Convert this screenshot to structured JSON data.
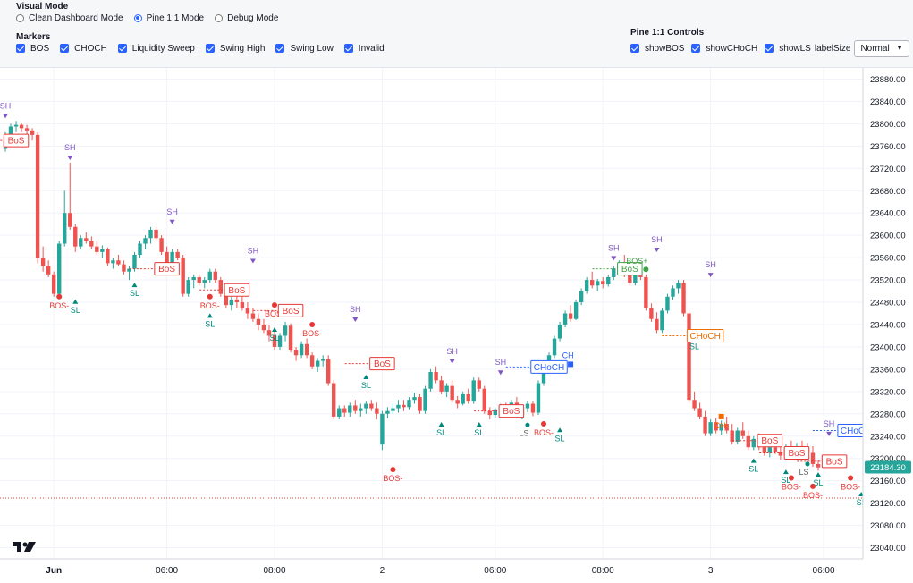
{
  "visual_mode": {
    "title": "Visual Mode",
    "options": [
      {
        "label": "Clean Dashboard Mode",
        "selected": false
      },
      {
        "label": "Pine 1:1 Mode",
        "selected": true
      },
      {
        "label": "Debug Mode",
        "selected": false
      }
    ]
  },
  "markers": {
    "title": "Markers",
    "items": [
      {
        "label": "BOS",
        "checked": true
      },
      {
        "label": "CHOCH",
        "checked": true
      },
      {
        "label": "Liquidity Sweep",
        "checked": true
      },
      {
        "label": "Swing High",
        "checked": true
      },
      {
        "label": "Swing Low",
        "checked": true
      },
      {
        "label": "Invalid",
        "checked": true
      }
    ]
  },
  "pine_controls": {
    "title": "Pine 1:1 Controls",
    "items": [
      {
        "label": "showBOS",
        "checked": true
      },
      {
        "label": "showCHoCH",
        "checked": true
      },
      {
        "label": "showLS",
        "checked": true
      }
    ],
    "label_size_label": "labelSize",
    "label_size_value": "Normal"
  },
  "colors": {
    "up": "#26a69a",
    "down": "#ef5350",
    "bos": "#e53935",
    "choch_bull": "#2962ff",
    "choch_bear": "#ef6c00",
    "swing": "#7e57c2",
    "sl": "#00897b",
    "bull_bos": "#43a047"
  },
  "chart_data": {
    "type": "candlestick",
    "y_range": [
      23020,
      23900
    ],
    "y_ticks": [
      "23880.00",
      "23840.00",
      "23800.00",
      "23760.00",
      "23720.00",
      "23680.00",
      "23640.00",
      "23600.00",
      "23560.00",
      "23520.00",
      "23480.00",
      "23440.00",
      "23400.00",
      "23360.00",
      "23320.00",
      "23280.00",
      "23240.00",
      "23200.00",
      "23160.00",
      "23120.00",
      "23080.00",
      "23040.00"
    ],
    "x_ticks": [
      {
        "label": "Jun",
        "index": 9
      },
      {
        "label": "06:00",
        "index": 30
      },
      {
        "label": "08:00",
        "index": 50
      },
      {
        "label": "2",
        "index": 70
      },
      {
        "label": "06:00",
        "index": 91
      },
      {
        "label": "08:00",
        "index": 111
      },
      {
        "label": "3",
        "index": 131
      },
      {
        "label": "06:00",
        "index": 152
      }
    ],
    "last_price": "23184.30",
    "last_price_value": 23184.3,
    "reference_line": 23129,
    "candles": [
      [
        23755,
        23785,
        23750,
        23770
      ],
      [
        23770,
        23800,
        23765,
        23795
      ],
      [
        23795,
        23805,
        23785,
        23798
      ],
      [
        23798,
        23802,
        23785,
        23792
      ],
      [
        23792,
        23798,
        23780,
        23788
      ],
      [
        23788,
        23792,
        23770,
        23780
      ],
      [
        23780,
        23785,
        23550,
        23560
      ],
      [
        23560,
        23580,
        23535,
        23545
      ],
      [
        23545,
        23555,
        23525,
        23530
      ],
      [
        23530,
        23535,
        23490,
        23495
      ],
      [
        23495,
        23590,
        23490,
        23585
      ],
      [
        23585,
        23680,
        23580,
        23640
      ],
      [
        23640,
        23730,
        23610,
        23615
      ],
      [
        23615,
        23620,
        23570,
        23580
      ],
      [
        23580,
        23600,
        23575,
        23595
      ],
      [
        23595,
        23605,
        23585,
        23590
      ],
      [
        23590,
        23598,
        23575,
        23580
      ],
      [
        23580,
        23590,
        23565,
        23570
      ],
      [
        23570,
        23582,
        23560,
        23575
      ],
      [
        23575,
        23578,
        23545,
        23550
      ],
      [
        23550,
        23560,
        23540,
        23555
      ],
      [
        23555,
        23565,
        23545,
        23548
      ],
      [
        23548,
        23555,
        23530,
        23535
      ],
      [
        23535,
        23545,
        23520,
        23540
      ],
      [
        23540,
        23570,
        23535,
        23565
      ],
      [
        23565,
        23590,
        23560,
        23585
      ],
      [
        23585,
        23600,
        23575,
        23595
      ],
      [
        23595,
        23615,
        23585,
        23610
      ],
      [
        23610,
        23615,
        23590,
        23595
      ],
      [
        23595,
        23600,
        23565,
        23570
      ],
      [
        23570,
        23580,
        23545,
        23550
      ],
      [
        23550,
        23575,
        23545,
        23570
      ],
      [
        23570,
        23575,
        23555,
        23560
      ],
      [
        23560,
        23565,
        23490,
        23495
      ],
      [
        23495,
        23525,
        23490,
        23520
      ],
      [
        23520,
        23530,
        23505,
        23525
      ],
      [
        23525,
        23530,
        23510,
        23515
      ],
      [
        23515,
        23525,
        23505,
        23520
      ],
      [
        23520,
        23540,
        23515,
        23535
      ],
      [
        23535,
        23540,
        23515,
        23520
      ],
      [
        23520,
        23525,
        23490,
        23495
      ],
      [
        23495,
        23500,
        23470,
        23475
      ],
      [
        23475,
        23490,
        23465,
        23485
      ],
      [
        23485,
        23500,
        23470,
        23480
      ],
      [
        23480,
        23490,
        23465,
        23470
      ],
      [
        23470,
        23480,
        23450,
        23460
      ],
      [
        23460,
        23470,
        23445,
        23450
      ],
      [
        23450,
        23460,
        23430,
        23440
      ],
      [
        23440,
        23450,
        23425,
        23430
      ],
      [
        23430,
        23440,
        23410,
        23420
      ],
      [
        23420,
        23430,
        23395,
        23400
      ],
      [
        23400,
        23425,
        23395,
        23420
      ],
      [
        23420,
        23445,
        23410,
        23438
      ],
      [
        23438,
        23442,
        23390,
        23395
      ],
      [
        23395,
        23400,
        23375,
        23385
      ],
      [
        23385,
        23410,
        23380,
        23405
      ],
      [
        23405,
        23415,
        23380,
        23385
      ],
      [
        23385,
        23390,
        23360,
        23365
      ],
      [
        23365,
        23380,
        23355,
        23375
      ],
      [
        23375,
        23385,
        23365,
        23378
      ],
      [
        23378,
        23385,
        23330,
        23335
      ],
      [
        23335,
        23340,
        23270,
        23275
      ],
      [
        23275,
        23295,
        23270,
        23290
      ],
      [
        23290,
        23295,
        23275,
        23282
      ],
      [
        23282,
        23300,
        23275,
        23295
      ],
      [
        23295,
        23305,
        23280,
        23285
      ],
      [
        23285,
        23298,
        23275,
        23290
      ],
      [
        23290,
        23302,
        23280,
        23298
      ],
      [
        23298,
        23305,
        23285,
        23290
      ],
      [
        23290,
        23300,
        23270,
        23280
      ],
      [
        23225,
        23285,
        23215,
        23280
      ],
      [
        23280,
        23292,
        23272,
        23285
      ],
      [
        23285,
        23298,
        23280,
        23290
      ],
      [
        23290,
        23305,
        23282,
        23296
      ],
      [
        23296,
        23305,
        23285,
        23292
      ],
      [
        23292,
        23310,
        23288,
        23305
      ],
      [
        23305,
        23318,
        23298,
        23310
      ],
      [
        23310,
        23315,
        23280,
        23285
      ],
      [
        23285,
        23330,
        23280,
        23325
      ],
      [
        23325,
        23360,
        23320,
        23355
      ],
      [
        23355,
        23365,
        23335,
        23340
      ],
      [
        23340,
        23348,
        23315,
        23320
      ],
      [
        23320,
        23335,
        23310,
        23330
      ],
      [
        23330,
        23340,
        23300,
        23305
      ],
      [
        23305,
        23312,
        23290,
        23298
      ],
      [
        23298,
        23320,
        23295,
        23315
      ],
      [
        23315,
        23325,
        23298,
        23302
      ],
      [
        23302,
        23345,
        23298,
        23340
      ],
      [
        23340,
        23345,
        23320,
        23325
      ],
      [
        23325,
        23330,
        23280,
        23285
      ],
      [
        23285,
        23292,
        23270,
        23278
      ],
      [
        23278,
        23290,
        23272,
        23288
      ],
      [
        23288,
        23298,
        23280,
        23292
      ],
      [
        23292,
        23300,
        23282,
        23290
      ],
      [
        23290,
        23305,
        23285,
        23300
      ],
      [
        23300,
        23310,
        23272,
        23278
      ],
      [
        23278,
        23292,
        23270,
        23290
      ],
      [
        23290,
        23302,
        23283,
        23298
      ],
      [
        23298,
        23302,
        23276,
        23282
      ],
      [
        23282,
        23340,
        23278,
        23335
      ],
      [
        23335,
        23375,
        23330,
        23370
      ],
      [
        23370,
        23390,
        23365,
        23385
      ],
      [
        23385,
        23420,
        23380,
        23415
      ],
      [
        23415,
        23445,
        23410,
        23440
      ],
      [
        23440,
        23465,
        23435,
        23460
      ],
      [
        23460,
        23475,
        23445,
        23450
      ],
      [
        23450,
        23485,
        23448,
        23480
      ],
      [
        23480,
        23505,
        23475,
        23500
      ],
      [
        23500,
        23525,
        23495,
        23520
      ],
      [
        23520,
        23535,
        23505,
        23510
      ],
      [
        23510,
        23522,
        23500,
        23518
      ],
      [
        23518,
        23525,
        23505,
        23512
      ],
      [
        23512,
        23530,
        23508,
        23525
      ],
      [
        23525,
        23545,
        23520,
        23540
      ],
      [
        23540,
        23555,
        23535,
        23545
      ],
      [
        23545,
        23565,
        23525,
        23530
      ],
      [
        23530,
        23540,
        23510,
        23515
      ],
      [
        23515,
        23540,
        23510,
        23535
      ],
      [
        23535,
        23548,
        23520,
        23525
      ],
      [
        23525,
        23530,
        23465,
        23470
      ],
      [
        23470,
        23478,
        23445,
        23450
      ],
      [
        23450,
        23462,
        23425,
        23430
      ],
      [
        23430,
        23470,
        23425,
        23465
      ],
      [
        23465,
        23495,
        23460,
        23490
      ],
      [
        23490,
        23510,
        23485,
        23505
      ],
      [
        23505,
        23520,
        23495,
        23515
      ],
      [
        23515,
        23520,
        23455,
        23460
      ],
      [
        23460,
        23465,
        23298,
        23305
      ],
      [
        23305,
        23320,
        23285,
        23290
      ],
      [
        23290,
        23300,
        23270,
        23275
      ],
      [
        23275,
        23285,
        23240,
        23245
      ],
      [
        23245,
        23270,
        23240,
        23265
      ],
      [
        23265,
        23272,
        23245,
        23250
      ],
      [
        23250,
        23268,
        23242,
        23262
      ],
      [
        23262,
        23275,
        23245,
        23250
      ],
      [
        23250,
        23262,
        23225,
        23230
      ],
      [
        23230,
        23255,
        23225,
        23250
      ],
      [
        23250,
        23265,
        23235,
        23240
      ],
      [
        23240,
        23250,
        23215,
        23220
      ],
      [
        23220,
        23240,
        23215,
        23235
      ],
      [
        23235,
        23245,
        23215,
        23220
      ],
      [
        23220,
        23232,
        23205,
        23210
      ],
      [
        23210,
        23225,
        23202,
        23220
      ],
      [
        23220,
        23228,
        23208,
        23212
      ],
      [
        23212,
        23222,
        23198,
        23205
      ],
      [
        23205,
        23225,
        23198,
        23220
      ],
      [
        23220,
        23232,
        23210,
        23215
      ],
      [
        23215,
        23228,
        23208,
        23222
      ],
      [
        23222,
        23232,
        23212,
        23218
      ],
      [
        23218,
        23228,
        23205,
        23210
      ],
      [
        23210,
        23222,
        23185,
        23190
      ],
      [
        23190,
        23198,
        23178,
        23184
      ]
    ],
    "annotations": [
      {
        "text": "SH",
        "type": "swing-high",
        "index": 0,
        "price": 23805
      },
      {
        "text": "BoS",
        "type": "bos-box",
        "index": 2,
        "price": 23770
      },
      {
        "text": "SH",
        "type": "swing-high",
        "index": 12,
        "price": 23730
      },
      {
        "text": "BOS-",
        "type": "bos-dot",
        "index": 10,
        "price": 23490
      },
      {
        "text": "SL",
        "type": "swing-low",
        "index": 13,
        "price": 23490
      },
      {
        "text": "SH",
        "type": "swing-high",
        "index": 31,
        "price": 23615
      },
      {
        "text": "SL",
        "type": "swing-low",
        "index": 24,
        "price": 23520
      },
      {
        "text": "BoS",
        "type": "bos-box",
        "index": 30,
        "price": 23540
      },
      {
        "text": "BOS-",
        "type": "bos-dot",
        "index": 38,
        "price": 23490
      },
      {
        "text": "SL",
        "type": "swing-low",
        "index": 38,
        "price": 23465
      },
      {
        "text": "BoS",
        "type": "bos-box",
        "index": 43,
        "price": 23502
      },
      {
        "text": "SH",
        "type": "swing-high",
        "index": 46,
        "price": 23545
      },
      {
        "text": "BOS-",
        "type": "bos-dot",
        "index": 50,
        "price": 23475
      },
      {
        "text": "SL",
        "type": "swing-low",
        "index": 50,
        "price": 23440
      },
      {
        "text": "BoS",
        "type": "bos-box",
        "index": 53,
        "price": 23465
      },
      {
        "text": "BOS-",
        "type": "bos-dot",
        "index": 57,
        "price": 23440
      },
      {
        "text": "SH",
        "type": "swing-high",
        "index": 65,
        "price": 23440
      },
      {
        "text": "SL",
        "type": "swing-low",
        "index": 67,
        "price": 23355
      },
      {
        "text": "BoS",
        "type": "bos-box",
        "index": 70,
        "price": 23370
      },
      {
        "text": "BOS-",
        "type": "bos-dot",
        "index": 72,
        "price": 23180
      },
      {
        "text": "SL",
        "type": "swing-low",
        "index": 81,
        "price": 23270
      },
      {
        "text": "SH",
        "type": "swing-high",
        "index": 83,
        "price": 23365
      },
      {
        "text": "SL",
        "type": "swing-low",
        "index": 88,
        "price": 23270
      },
      {
        "text": "SH",
        "type": "swing-high",
        "index": 92,
        "price": 23345
      },
      {
        "text": "BoS",
        "type": "bos-box",
        "index": 94,
        "price": 23285
      },
      {
        "text": "CHoCH",
        "type": "choch-bull-box",
        "index": 101,
        "price": 23364
      },
      {
        "text": "CH",
        "type": "choch-bull-dot",
        "index": 105,
        "price": 23380
      },
      {
        "text": "LS",
        "type": "ls",
        "index": 97,
        "price": 23260
      },
      {
        "text": "BOS-",
        "type": "bos-dot",
        "index": 100,
        "price": 23262
      },
      {
        "text": "SL",
        "type": "swing-low",
        "index": 103,
        "price": 23260
      },
      {
        "text": "SH",
        "type": "swing-high",
        "index": 113,
        "price": 23550
      },
      {
        "text": "BoS",
        "type": "bull-bos-box",
        "index": 116,
        "price": 23540
      },
      {
        "text": "BOS+",
        "type": "bull-bos-dot",
        "index": 119,
        "price": 23555
      },
      {
        "text": "SH",
        "type": "swing-high",
        "index": 121,
        "price": 23565
      },
      {
        "text": "SH",
        "type": "swing-high",
        "index": 131,
        "price": 23520
      },
      {
        "text": "SL",
        "type": "swing-low",
        "index": 128,
        "price": 23425
      },
      {
        "text": "CHoCH",
        "type": "choch-bear-box",
        "index": 130,
        "price": 23420
      },
      {
        "text": "CH-",
        "type": "choch-bear-dot",
        "index": 133,
        "price": 23275
      },
      {
        "text": "SL",
        "type": "swing-low",
        "index": 139,
        "price": 23205
      },
      {
        "text": "BoS",
        "type": "bos-box",
        "index": 142,
        "price": 23232
      },
      {
        "text": "SL",
        "type": "swing-low",
        "index": 145,
        "price": 23185
      },
      {
        "text": "BoS",
        "type": "bos-box",
        "index": 147,
        "price": 23210
      },
      {
        "text": "BOS-",
        "type": "bos-dot",
        "index": 146,
        "price": 23165
      },
      {
        "text": "SH",
        "type": "swing-high",
        "index": 153,
        "price": 23235
      },
      {
        "text": "CHoCH",
        "type": "choch-bull-box",
        "index": 158,
        "price": 23250
      },
      {
        "text": "LS",
        "type": "ls",
        "index": 149,
        "price": 23190
      },
      {
        "text": "SL",
        "type": "swing-low",
        "index": 151,
        "price": 23180
      },
      {
        "text": "BOS-",
        "type": "bos-dot",
        "index": 150,
        "price": 23150
      },
      {
        "text": "BoS",
        "type": "bos-box",
        "index": 154,
        "price": 23195
      },
      {
        "text": "BOS-",
        "type": "bos-dot",
        "index": 157,
        "price": 23165
      },
      {
        "text": "SL",
        "type": "swing-low",
        "index": 159,
        "price": 23145
      }
    ]
  }
}
